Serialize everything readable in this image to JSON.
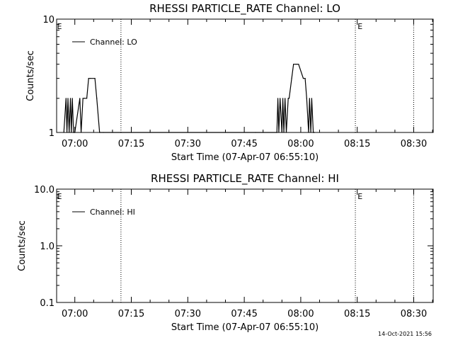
{
  "colors": {
    "background": "#ffffff",
    "ink": "#000000"
  },
  "timestamp": "14-Oct-2021 15:56",
  "chart_data": [
    {
      "type": "line",
      "title": "RHESSI PARTICLE_RATE Channel: LO",
      "xlabel": "Start Time (07-Apr-07 06:55:10)",
      "ylabel": "Counts/sec",
      "xlim": [
        "06:55:10",
        "08:35:10"
      ],
      "ylim": [
        1,
        10
      ],
      "yscale": "log",
      "y_tick_labels": [
        "1",
        "10"
      ],
      "x_tick_labels": [
        "07:00",
        "07:15",
        "07:30",
        "07:45",
        "08:00",
        "08:15",
        "08:30"
      ],
      "legend": {
        "position": "top-left",
        "entries": [
          "Channel: LO"
        ]
      },
      "event_lines": [
        "07:12:15",
        "08:14:30",
        "08:30:00"
      ],
      "event_flags": [
        {
          "time": "06:55:10",
          "label": "E"
        },
        {
          "time": "08:15:00",
          "label": "E"
        }
      ],
      "series": [
        {
          "name": "Channel: LO",
          "x": [
            "06:57:05",
            "06:57:40",
            "06:57:55",
            "06:58:10",
            "06:58:30",
            "06:58:50",
            "06:59:05",
            "06:59:20",
            "06:59:40",
            "07:00:00",
            "07:01:20",
            "07:01:40",
            "07:02:10",
            "07:02:35",
            "07:03:10",
            "07:03:40",
            "07:04:10",
            "07:05:20",
            "07:05:50",
            "07:06:35",
            "07:07:35",
            "07:48:00",
            "07:53:40",
            "07:53:55",
            "07:54:10",
            "07:54:30",
            "07:55:00",
            "07:55:15",
            "07:55:30",
            "07:55:50",
            "07:56:10",
            "07:56:40",
            "07:56:55",
            "07:57:35",
            "07:58:05",
            "07:58:40",
            "07:59:00",
            "07:59:25",
            "08:00:40",
            "08:01:10",
            "08:01:35",
            "08:02:05",
            "08:02:20",
            "08:02:40",
            "08:02:55",
            "08:03:20",
            "08:03:40"
          ],
          "y": [
            1,
            2,
            1,
            2,
            1,
            2,
            1,
            2,
            1,
            1,
            2,
            1,
            2,
            2,
            2,
            3,
            3,
            3,
            2,
            1,
            1,
            1,
            1,
            2,
            1,
            2,
            1,
            2,
            1,
            2,
            1,
            2,
            2,
            3,
            4,
            4,
            4,
            4,
            3,
            3,
            2,
            1,
            2,
            1,
            2,
            1,
            1
          ]
        }
      ]
    },
    {
      "type": "line",
      "title": "RHESSI PARTICLE_RATE Channel: HI",
      "xlabel": "Start Time (07-Apr-07 06:55:10)",
      "ylabel": "Counts/sec",
      "xlim": [
        "06:55:10",
        "08:35:10"
      ],
      "ylim": [
        0.1,
        10
      ],
      "yscale": "log",
      "y_tick_labels": [
        "0.1",
        "1.0",
        "10.0"
      ],
      "x_tick_labels": [
        "07:00",
        "07:15",
        "07:30",
        "07:45",
        "08:00",
        "08:15",
        "08:30"
      ],
      "legend": {
        "position": "top-left",
        "entries": [
          "Channel: HI"
        ]
      },
      "event_lines": [
        "07:12:15",
        "08:14:30",
        "08:30:00"
      ],
      "event_flags": [
        {
          "time": "06:55:10",
          "label": "E"
        },
        {
          "time": "08:15:00",
          "label": "E"
        }
      ],
      "series": [
        {
          "name": "Channel: HI",
          "x": [],
          "y": []
        }
      ]
    }
  ]
}
